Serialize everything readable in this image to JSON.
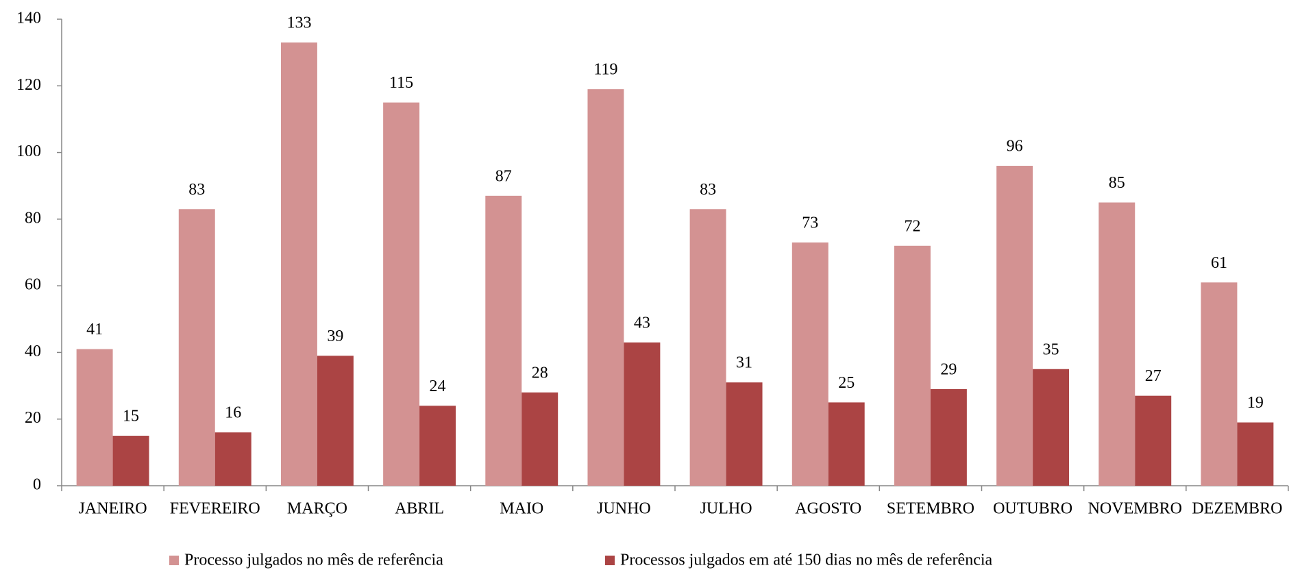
{
  "chart_data": {
    "type": "bar",
    "categories": [
      "JANEIRO",
      "FEVEREIRO",
      "MARÇO",
      "ABRIL",
      "MAIO",
      "JUNHO",
      "JULHO",
      "AGOSTO",
      "SETEMBRO",
      "OUTUBRO",
      "NOVEMBRO",
      "DEZEMBRO"
    ],
    "series": [
      {
        "name": "Processo julgados no mês de referência",
        "color": "#d39292",
        "values": [
          41,
          83,
          133,
          115,
          87,
          119,
          83,
          73,
          72,
          96,
          85,
          61
        ]
      },
      {
        "name": "Processos julgados em até 150 dias no mês de referência",
        "color": "#ab4444",
        "values": [
          15,
          16,
          39,
          24,
          28,
          43,
          31,
          25,
          29,
          35,
          27,
          19
        ]
      }
    ],
    "ylim": [
      0,
      140
    ],
    "yticks": [
      0,
      20,
      40,
      60,
      80,
      100,
      120,
      140
    ],
    "grid": false,
    "legend": "bottom"
  }
}
